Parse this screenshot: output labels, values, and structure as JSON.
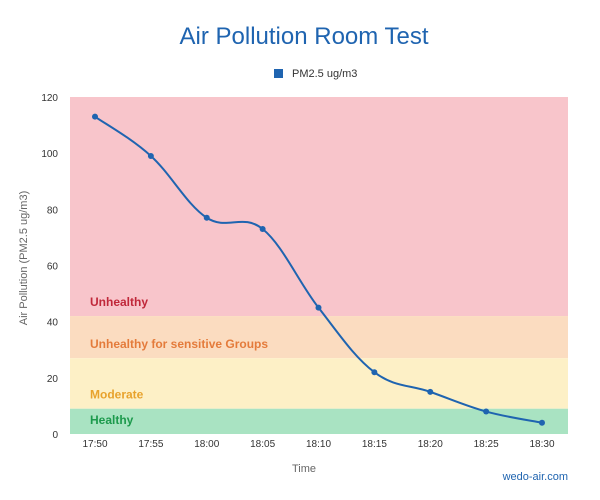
{
  "chart_data": {
    "type": "line",
    "title": "Air Pollution Room Test",
    "xlabel": "Time",
    "ylabel": "Air Pollution (PM2.5 ug/m3)",
    "ylim": [
      0,
      120
    ],
    "yticks": [
      0,
      20,
      40,
      60,
      80,
      100,
      120
    ],
    "categories": [
      "17:50",
      "17:55",
      "18:00",
      "18:05",
      "18:10",
      "18:15",
      "18:20",
      "18:25",
      "18:30"
    ],
    "series": [
      {
        "name": "PM2.5 ug/m3",
        "color": "#1f64b0",
        "values": [
          113,
          99,
          77,
          73,
          45,
          22,
          15,
          8,
          4
        ]
      }
    ],
    "legend": {
      "position": "top-center"
    },
    "bands": [
      {
        "label": "Unhealthy",
        "from": 42,
        "to": 120,
        "color": "#f8c5cb",
        "text_color": "#c0283a"
      },
      {
        "label": "Unhealthy for sensitive Groups",
        "from": 27,
        "to": 42,
        "color": "#fbdcc0",
        "text_color": "#e47b3b"
      },
      {
        "label": "Moderate",
        "from": 9,
        "to": 27,
        "color": "#fdf0c6",
        "text_color": "#e8a22c"
      },
      {
        "label": "Healthy",
        "from": 0,
        "to": 9,
        "color": "#a9e3c2",
        "text_color": "#1c9a4c"
      }
    ],
    "grid": false
  },
  "credit": "wedo-air.com"
}
